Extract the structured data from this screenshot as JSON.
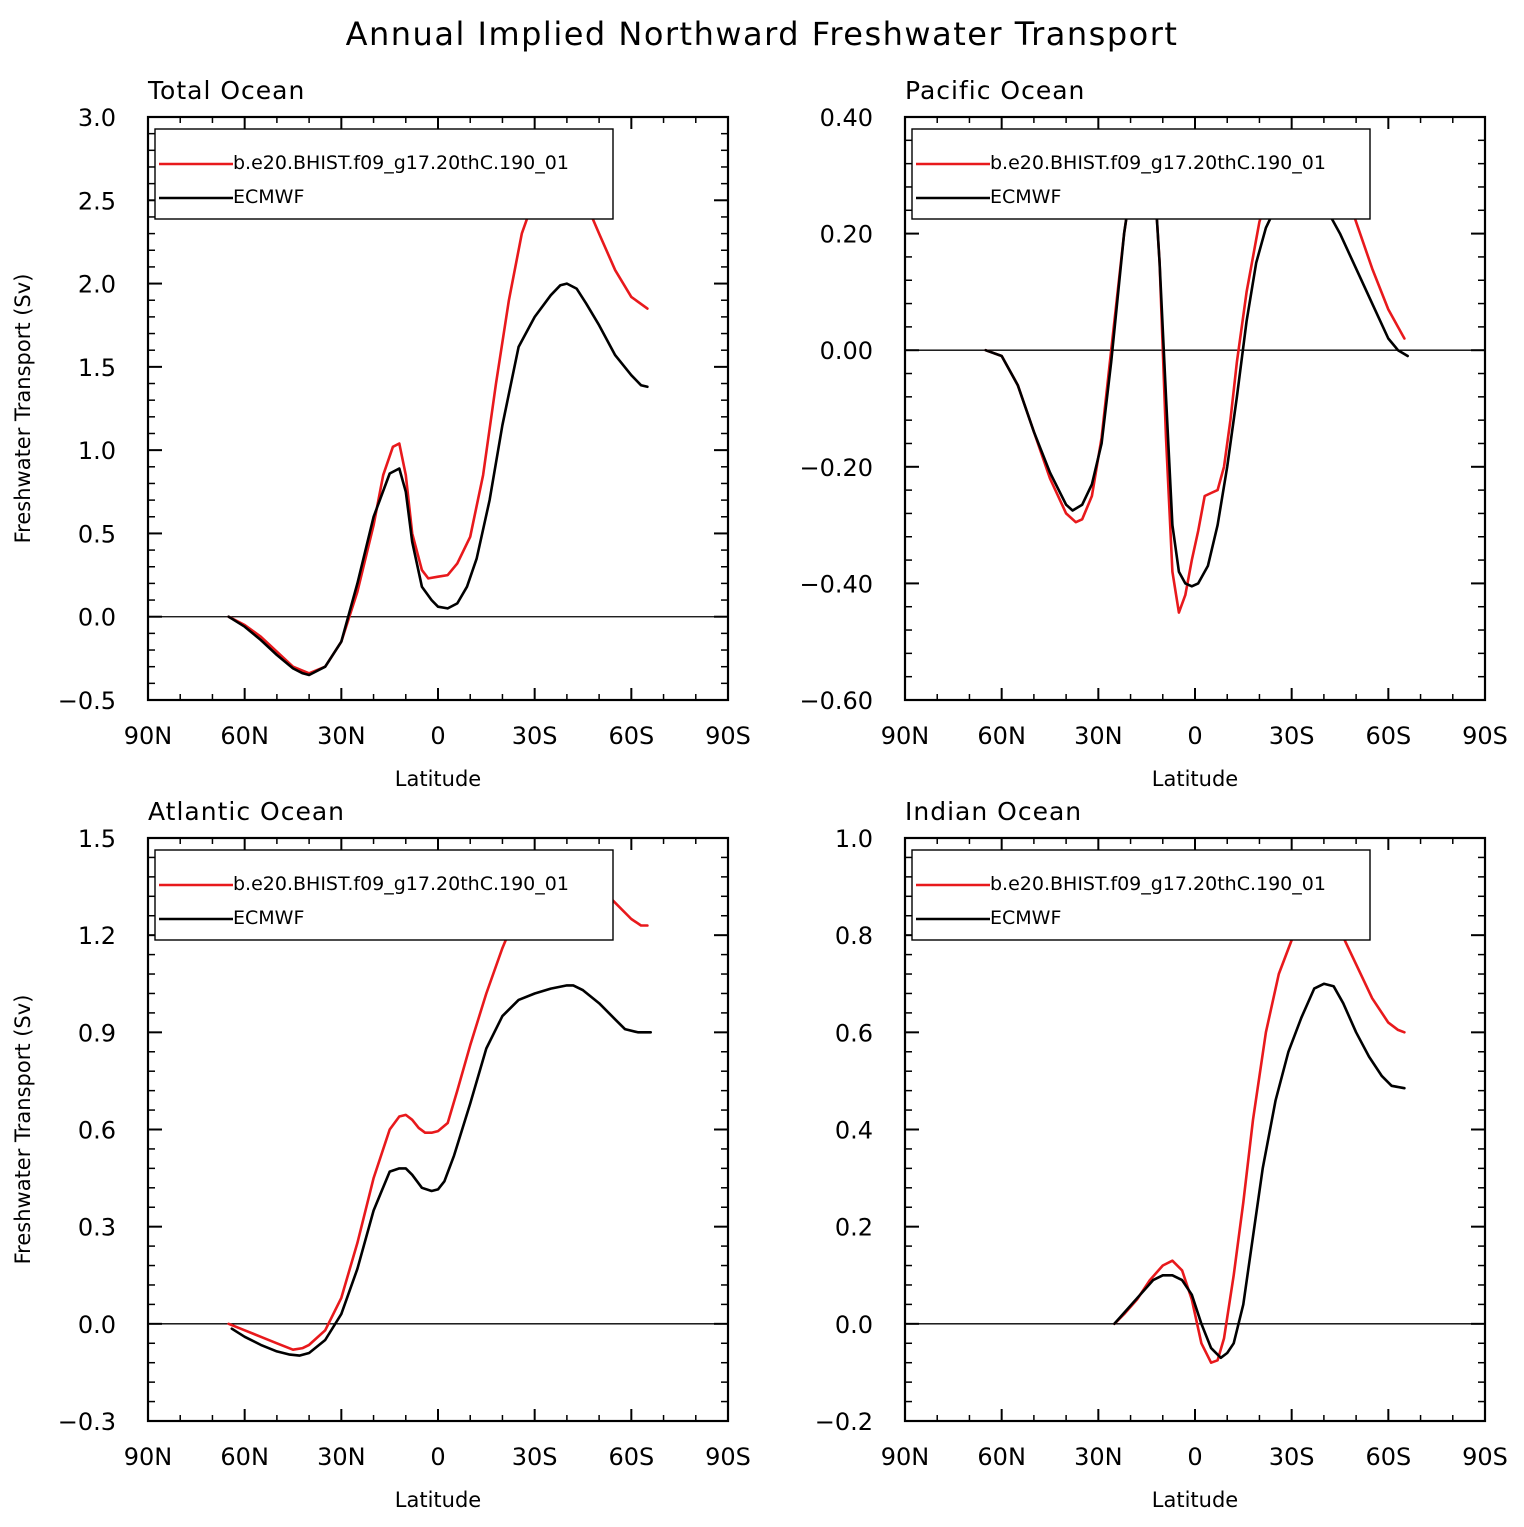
{
  "title": "Annual Implied Northward Freshwater Transport",
  "colors": {
    "model": "#e8191c",
    "obs": "#000000",
    "zero_line": "#000000"
  },
  "chart_data": [
    {
      "type": "line",
      "title": "Total Ocean",
      "xlabel": "Latitude",
      "ylabel": "Freshwater Transport (Sv)",
      "xlim": [
        90,
        -90
      ],
      "ylim": [
        -0.5,
        3.0
      ],
      "xticks": [
        90,
        60,
        30,
        0,
        -30,
        -60,
        -90
      ],
      "xtick_labels": [
        "90N",
        "60N",
        "30N",
        "0",
        "30S",
        "60S",
        "90S"
      ],
      "yticks": [
        -0.5,
        0.0,
        0.5,
        1.0,
        1.5,
        2.0,
        2.5,
        3.0
      ],
      "ytick_labels": [
        "−0.5",
        "0.0",
        "0.5",
        "1.0",
        "1.5",
        "2.0",
        "2.5",
        "3.0"
      ],
      "legend": "top-left",
      "series": [
        {
          "name": "b.e20.BHIST.f09_g17.20thC.190_01",
          "color": "#e8191c",
          "x": [
            65,
            60,
            55,
            50,
            45,
            40,
            35,
            30,
            25,
            20,
            17,
            14,
            12,
            10,
            8,
            5,
            3,
            0,
            -3,
            -6,
            -10,
            -14,
            -18,
            -22,
            -26,
            -30,
            -34,
            -38,
            -40,
            -42,
            -46,
            -50,
            -55,
            -60,
            -65
          ],
          "y": [
            0.0,
            -0.05,
            -0.12,
            -0.21,
            -0.3,
            -0.34,
            -0.3,
            -0.15,
            0.15,
            0.55,
            0.85,
            1.02,
            1.04,
            0.85,
            0.5,
            0.28,
            0.23,
            0.24,
            0.25,
            0.32,
            0.48,
            0.85,
            1.4,
            1.9,
            2.3,
            2.52,
            2.6,
            2.63,
            2.63,
            2.6,
            2.48,
            2.3,
            2.08,
            1.92,
            1.85
          ]
        },
        {
          "name": "ECMWF",
          "color": "#000000",
          "x": [
            65,
            60,
            55,
            50,
            45,
            42,
            40,
            35,
            30,
            25,
            20,
            15,
            12,
            10,
            8,
            5,
            2,
            0,
            -3,
            -6,
            -9,
            -12,
            -16,
            -20,
            -25,
            -30,
            -35,
            -38,
            -40,
            -43,
            -46,
            -50,
            -55,
            -60,
            -63,
            -65
          ],
          "y": [
            0.0,
            -0.06,
            -0.14,
            -0.23,
            -0.31,
            -0.34,
            -0.35,
            -0.3,
            -0.15,
            0.2,
            0.6,
            0.86,
            0.89,
            0.75,
            0.45,
            0.18,
            0.1,
            0.06,
            0.05,
            0.08,
            0.18,
            0.35,
            0.7,
            1.15,
            1.62,
            1.8,
            1.93,
            1.99,
            2.0,
            1.97,
            1.88,
            1.75,
            1.57,
            1.45,
            1.39,
            1.38
          ]
        }
      ]
    },
    {
      "type": "line",
      "title": "Pacific Ocean",
      "xlabel": "Latitude",
      "ylabel": "",
      "xlim": [
        90,
        -90
      ],
      "ylim": [
        -0.6,
        0.4
      ],
      "xticks": [
        90,
        60,
        30,
        0,
        -30,
        -60,
        -90
      ],
      "xtick_labels": [
        "90N",
        "60N",
        "30N",
        "0",
        "30S",
        "60S",
        "90S"
      ],
      "yticks": [
        -0.6,
        -0.4,
        -0.2,
        0.0,
        0.2,
        0.4
      ],
      "ytick_labels": [
        "−0.60",
        "−0.40",
        "−0.20",
        "0.00",
        "0.20",
        "0.40"
      ],
      "legend": "top-left",
      "series": [
        {
          "name": "b.e20.BHIST.f09_g17.20thC.190_01",
          "color": "#e8191c",
          "x": [
            65,
            60,
            55,
            50,
            45,
            40,
            37,
            35,
            32,
            29,
            26,
            22,
            18,
            15,
            13,
            11,
            9,
            7,
            5,
            3,
            1,
            -1,
            -3,
            -5,
            -7,
            -9,
            -11,
            -13,
            -16,
            -20,
            -25,
            -30,
            -35,
            -38,
            -40,
            -45,
            -50,
            -55,
            -60,
            -65
          ],
          "y": [
            0.0,
            -0.01,
            -0.06,
            -0.14,
            -0.22,
            -0.28,
            -0.295,
            -0.29,
            -0.25,
            -0.15,
            0.0,
            0.2,
            0.35,
            0.375,
            0.33,
            0.15,
            -0.15,
            -0.38,
            -0.45,
            -0.42,
            -0.36,
            -0.31,
            -0.25,
            -0.245,
            -0.24,
            -0.2,
            -0.12,
            -0.02,
            0.1,
            0.22,
            0.31,
            0.36,
            0.375,
            0.37,
            0.36,
            0.3,
            0.22,
            0.14,
            0.07,
            0.02
          ]
        },
        {
          "name": "ECMWF",
          "color": "#000000",
          "x": [
            65,
            60,
            55,
            50,
            45,
            40,
            38,
            35,
            32,
            29,
            26,
            22,
            18,
            15,
            13,
            11,
            9,
            7,
            5,
            3,
            1,
            -1,
            -4,
            -7,
            -10,
            -13,
            -16,
            -19,
            -22,
            -25,
            -28,
            -31,
            -34,
            -37,
            -40,
            -45,
            -50,
            -55,
            -60,
            -63,
            -66
          ],
          "y": [
            0.0,
            -0.01,
            -0.06,
            -0.14,
            -0.21,
            -0.265,
            -0.275,
            -0.265,
            -0.23,
            -0.16,
            -0.02,
            0.2,
            0.35,
            0.37,
            0.33,
            0.15,
            -0.08,
            -0.3,
            -0.38,
            -0.4,
            -0.405,
            -0.4,
            -0.37,
            -0.3,
            -0.2,
            -0.08,
            0.05,
            0.15,
            0.21,
            0.245,
            0.26,
            0.265,
            0.27,
            0.265,
            0.25,
            0.2,
            0.14,
            0.08,
            0.02,
            0.0,
            -0.01
          ]
        }
      ]
    },
    {
      "type": "line",
      "title": "Atlantic Ocean",
      "xlabel": "Latitude",
      "ylabel": "Freshwater Transport (Sv)",
      "xlim": [
        90,
        -90
      ],
      "ylim": [
        -0.3,
        1.5
      ],
      "xticks": [
        90,
        60,
        30,
        0,
        -30,
        -60,
        -90
      ],
      "xtick_labels": [
        "90N",
        "60N",
        "30N",
        "0",
        "30S",
        "60S",
        "90S"
      ],
      "yticks": [
        -0.3,
        0.0,
        0.3,
        0.6,
        0.9,
        1.2,
        1.5
      ],
      "ytick_labels": [
        "−0.3",
        "0.0",
        "0.3",
        "0.6",
        "0.9",
        "1.2",
        "1.5"
      ],
      "legend": "top-left",
      "series": [
        {
          "name": "b.e20.BHIST.f09_g17.20thC.190_01",
          "color": "#e8191c",
          "x": [
            65,
            60,
            55,
            50,
            45,
            42,
            40,
            35,
            30,
            25,
            20,
            15,
            12,
            10,
            8,
            6,
            4,
            2,
            0,
            -3,
            -6,
            -10,
            -15,
            -20,
            -25,
            -30,
            -35,
            -40,
            -43,
            -46,
            -50,
            -55,
            -60,
            -63,
            -65
          ],
          "y": [
            0.0,
            -0.02,
            -0.04,
            -0.06,
            -0.08,
            -0.075,
            -0.065,
            -0.02,
            0.08,
            0.25,
            0.45,
            0.6,
            0.64,
            0.645,
            0.63,
            0.605,
            0.59,
            0.59,
            0.595,
            0.62,
            0.72,
            0.86,
            1.02,
            1.16,
            1.28,
            1.35,
            1.39,
            1.41,
            1.41,
            1.39,
            1.35,
            1.3,
            1.25,
            1.23,
            1.23
          ]
        },
        {
          "name": "ECMWF",
          "color": "#000000",
          "x": [
            64,
            60,
            55,
            50,
            46,
            43,
            40,
            35,
            30,
            25,
            20,
            15,
            12,
            10,
            8,
            5,
            2,
            0,
            -2,
            -5,
            -10,
            -15,
            -20,
            -25,
            -30,
            -35,
            -40,
            -42,
            -45,
            -50,
            -55,
            -58,
            -62,
            -66
          ],
          "y": [
            -0.015,
            -0.04,
            -0.065,
            -0.085,
            -0.095,
            -0.098,
            -0.09,
            -0.05,
            0.03,
            0.17,
            0.35,
            0.47,
            0.48,
            0.48,
            0.46,
            0.42,
            0.41,
            0.415,
            0.44,
            0.52,
            0.68,
            0.85,
            0.95,
            1.0,
            1.02,
            1.035,
            1.045,
            1.045,
            1.03,
            0.99,
            0.94,
            0.91,
            0.9,
            0.9
          ]
        }
      ]
    },
    {
      "type": "line",
      "title": "Indian Ocean",
      "xlabel": "Latitude",
      "ylabel": "",
      "xlim": [
        90,
        -90
      ],
      "ylim": [
        -0.2,
        1.0
      ],
      "xticks": [
        90,
        60,
        30,
        0,
        -30,
        -60,
        -90
      ],
      "xtick_labels": [
        "90N",
        "60N",
        "30N",
        "0",
        "30S",
        "60S",
        "90S"
      ],
      "yticks": [
        -0.2,
        0.0,
        0.2,
        0.4,
        0.6,
        0.8,
        1.0
      ],
      "ytick_labels": [
        "−0.2",
        "0.0",
        "0.2",
        "0.4",
        "0.6",
        "0.8",
        "1.0"
      ],
      "legend": "top-left",
      "series": [
        {
          "name": "b.e20.BHIST.f09_g17.20thC.190_01",
          "color": "#e8191c",
          "x": [
            25,
            22,
            18,
            14,
            10,
            7,
            4,
            1,
            -2,
            -5,
            -7,
            -9,
            -12,
            -15,
            -18,
            -22,
            -26,
            -30,
            -34,
            -38,
            -40,
            -42,
            -45,
            -50,
            -55,
            -60,
            -63,
            -65
          ],
          "y": [
            0.0,
            0.02,
            0.05,
            0.09,
            0.12,
            0.13,
            0.11,
            0.05,
            -0.04,
            -0.08,
            -0.075,
            -0.03,
            0.1,
            0.25,
            0.42,
            0.6,
            0.72,
            0.79,
            0.835,
            0.85,
            0.85,
            0.84,
            0.81,
            0.74,
            0.67,
            0.62,
            0.605,
            0.6
          ]
        },
        {
          "name": "ECMWF",
          "color": "#000000",
          "x": [
            25,
            21,
            17,
            13,
            10,
            7,
            4,
            1,
            -2,
            -5,
            -8,
            -10,
            -12,
            -15,
            -18,
            -21,
            -25,
            -29,
            -33,
            -37,
            -40,
            -43,
            -46,
            -50,
            -54,
            -58,
            -61,
            -65
          ],
          "y": [
            0.0,
            0.03,
            0.06,
            0.09,
            0.1,
            0.1,
            0.09,
            0.06,
            0.0,
            -0.05,
            -0.07,
            -0.06,
            -0.04,
            0.04,
            0.18,
            0.32,
            0.46,
            0.56,
            0.63,
            0.69,
            0.7,
            0.695,
            0.66,
            0.6,
            0.55,
            0.51,
            0.49,
            0.485
          ]
        }
      ]
    }
  ]
}
